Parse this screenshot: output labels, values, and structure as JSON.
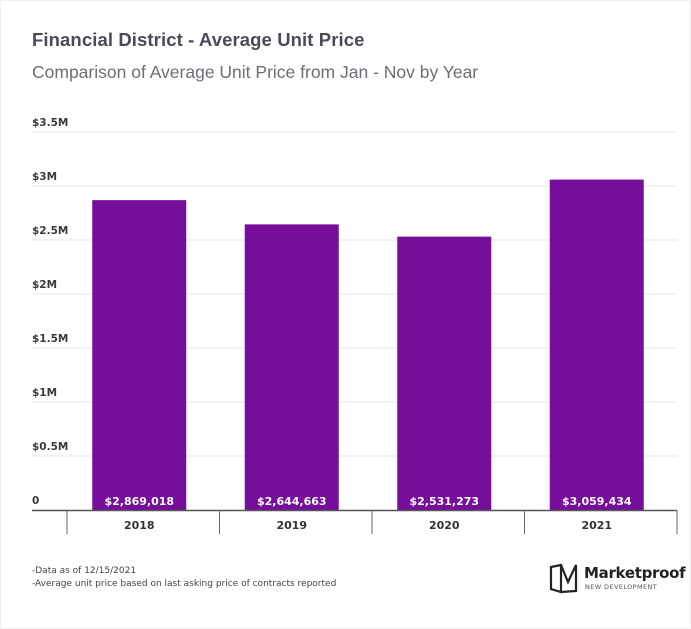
{
  "chart_data": {
    "type": "bar",
    "title": "Financial District - Average Unit Price",
    "subtitle": "Comparison of Average Unit Price from Jan - Nov by Year",
    "xlabel": "",
    "ylabel": "",
    "categories": [
      "2018",
      "2019",
      "2020",
      "2021"
    ],
    "values": [
      2869018,
      2644663,
      2531273,
      3059434
    ],
    "data_labels": [
      "$2,869,018",
      "$2,644,663",
      "$2,531,273",
      "$3,059,434"
    ],
    "ylim": [
      0,
      3500000
    ],
    "yticks": [
      0,
      500000,
      1000000,
      1500000,
      2000000,
      2500000,
      3000000,
      3500000
    ],
    "ytick_labels": [
      "0",
      "$0.5M",
      "$1M",
      "$1.5M",
      "$2M",
      "$2.5M",
      "$3M",
      "$3.5M"
    ],
    "grid": true,
    "legend": "none",
    "bar_color": "#760e9b"
  },
  "notes": [
    "-Data as of 12/15/2021",
    "-Average unit price based on last asking price of contracts reported"
  ],
  "logo": {
    "name": "Marketproof",
    "tagline": "NEW DEVELOPMENT"
  }
}
